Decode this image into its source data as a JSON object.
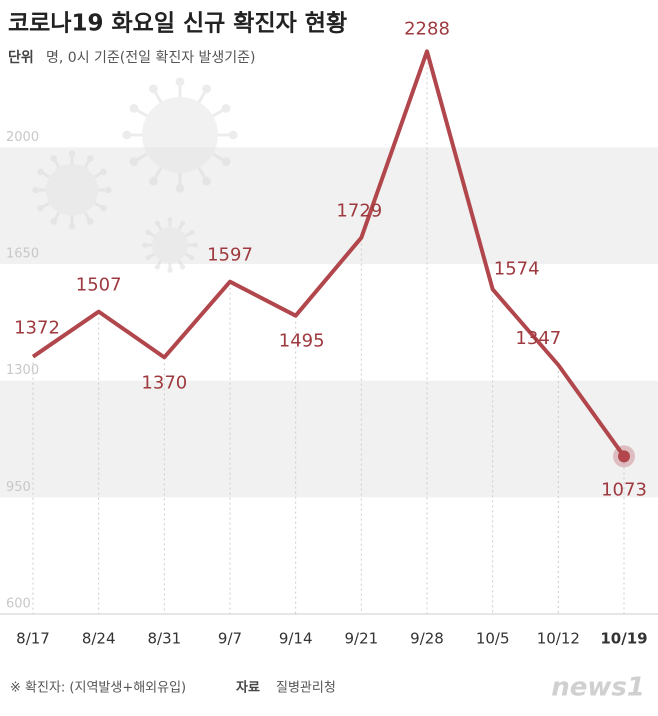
{
  "chart_data": {
    "type": "line",
    "title": "코로나19 화요일 신규 확진자 현황",
    "unit_label": "단위",
    "unit_text": "명, 0시 기준(전일 확진자 발생기준)",
    "categories": [
      "8/17",
      "8/24",
      "8/31",
      "9/7",
      "9/14",
      "9/21",
      "9/28",
      "10/5",
      "10/12",
      "10/19"
    ],
    "series": [
      {
        "name": "신규 확진자",
        "color": "#b1474c",
        "values": [
          1372,
          1507,
          1370,
          1597,
          1495,
          1729,
          2288,
          1574,
          1347,
          1073
        ]
      }
    ],
    "ylim": [
      600,
      2400
    ],
    "yticks": [
      600,
      950,
      1300,
      1650,
      2000
    ],
    "note": "※ 확진자: (지역발생+해외유입)",
    "source_label": "자료",
    "source": "질병관리청",
    "logo": "news1"
  }
}
